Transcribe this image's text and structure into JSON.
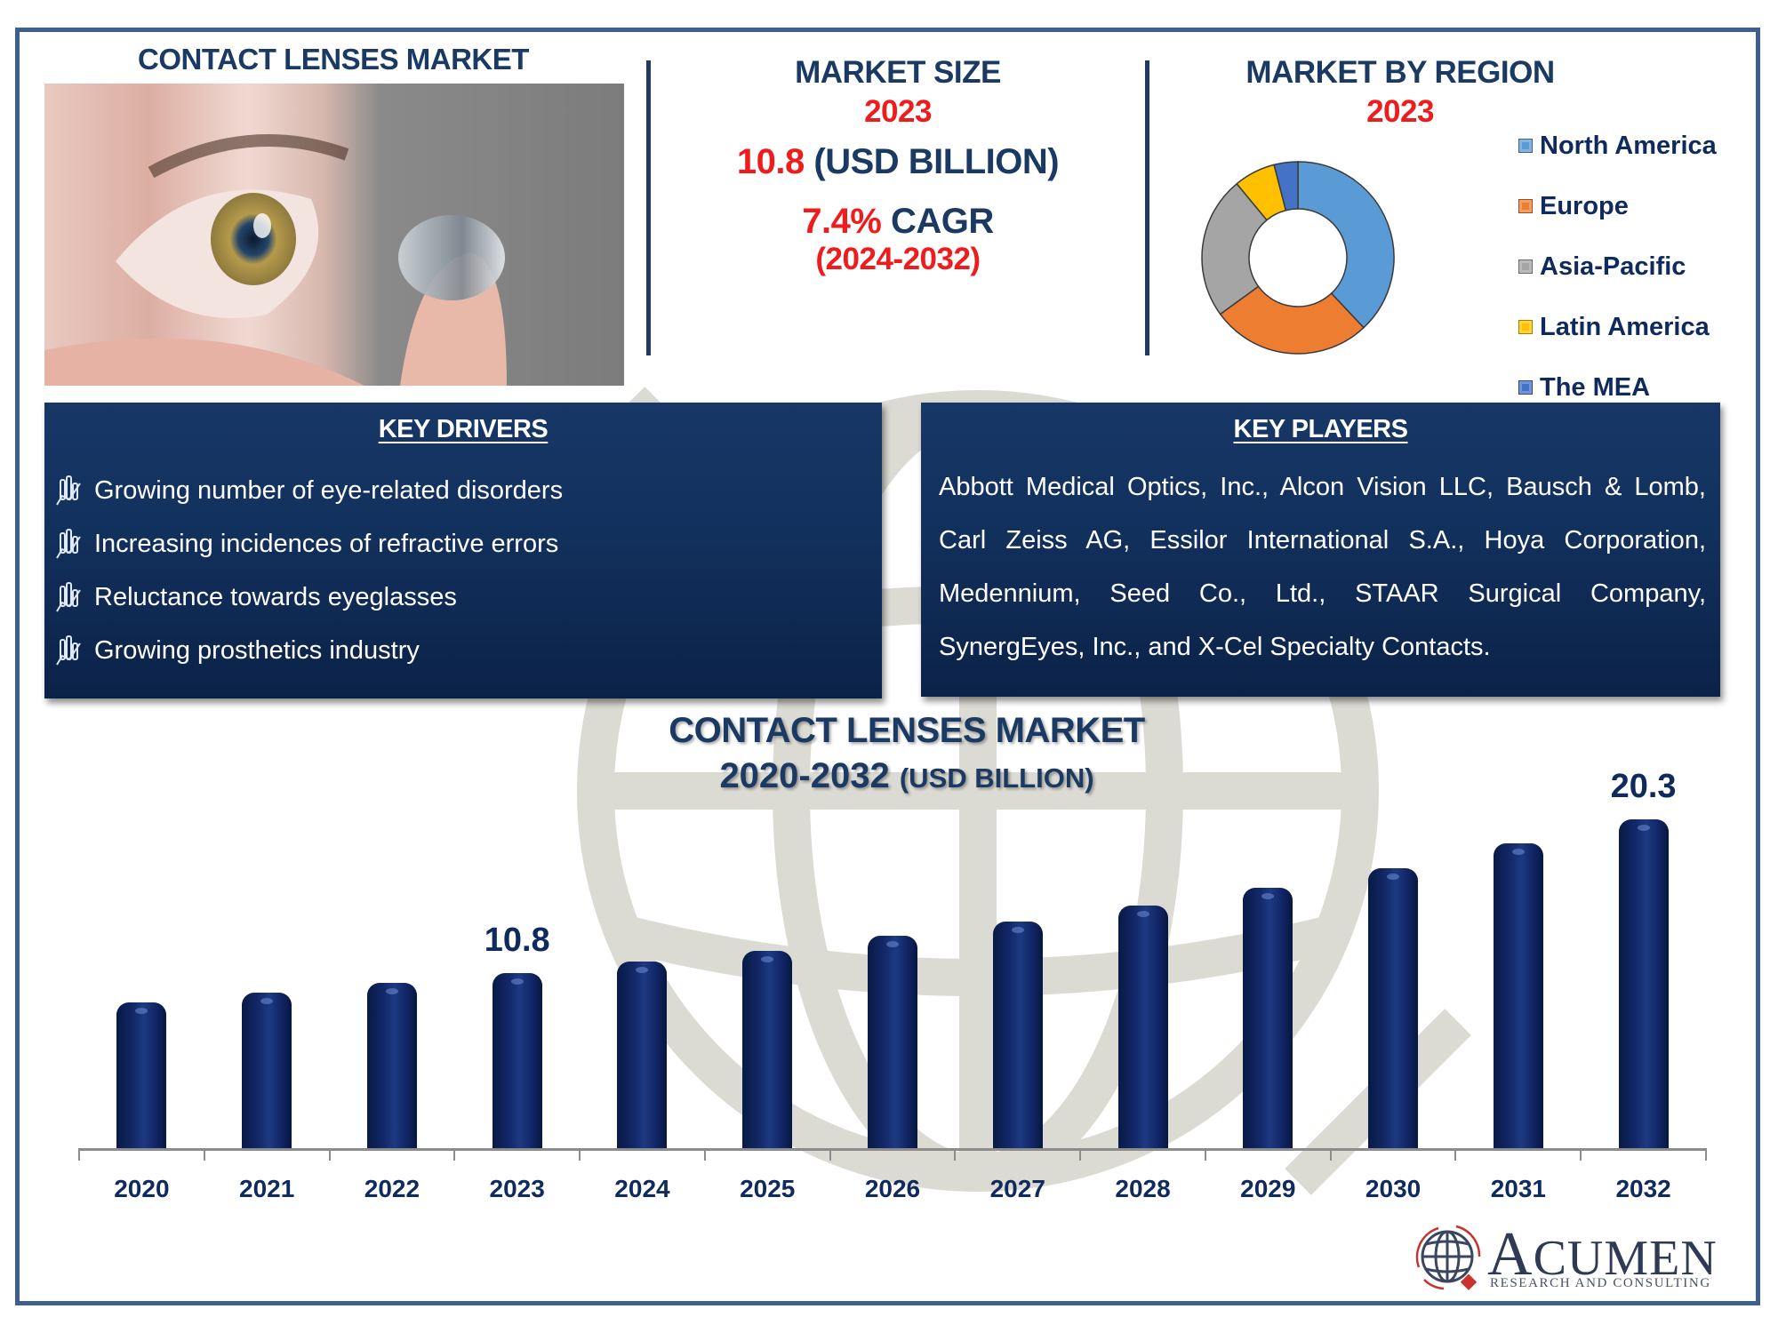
{
  "header": {
    "title": "CONTACT LENSES MARKET"
  },
  "market_size": {
    "heading": "MARKET SIZE",
    "year": "2023",
    "value": "10.8",
    "unit": "(USD BILLION)",
    "cagr_value": "7.4%",
    "cagr_label": "CAGR",
    "cagr_period": "(2024-2032)"
  },
  "region": {
    "heading": "MARKET BY REGION",
    "year": "2023",
    "legend": [
      {
        "label": "North America",
        "color": "#5b9bd5"
      },
      {
        "label": "Europe",
        "color": "#ed7d31"
      },
      {
        "label": "Asia-Pacific",
        "color": "#a5a5a5"
      },
      {
        "label": "Latin America",
        "color": "#ffc000"
      },
      {
        "label": "The MEA",
        "color": "#4472c4"
      }
    ]
  },
  "key_drivers": {
    "heading": "KEY DRIVERS",
    "icon": "bar-chart-trend-icon",
    "items": [
      "Growing number of eye-related disorders",
      "Increasing incidences of refractive errors",
      "Reluctance towards eyeglasses",
      "Growing prosthetics industry"
    ]
  },
  "key_players": {
    "heading": "KEY PLAYERS",
    "text": "Abbott Medical Optics, Inc., Alcon Vision LLC, Bausch & Lomb, Carl Zeiss AG, Essilor International S.A., Hoya Corporation, Medennium, Seed Co., Ltd., STAAR Surgical Company, SynergEyes, Inc., and X-Cel Specialty Contacts."
  },
  "bar_chart": {
    "title_line1": "CONTACT LENSES MARKET",
    "title_line2": "2020-2032",
    "title_unit": "(USD BILLION)"
  },
  "logo": {
    "name_cap": "A",
    "name_rest": "CUMEN",
    "tagline": "RESEARCH AND CONSULTING"
  },
  "colors": {
    "navy": "#1a3a64",
    "accent_red": "#ee1c1c",
    "bar": "#13296a",
    "frame": "#3d5f8f"
  },
  "chart_data": [
    {
      "type": "bar",
      "title": "CONTACT LENSES MARKET 2020-2032 (USD BILLION)",
      "categories": [
        "2020",
        "2021",
        "2022",
        "2023",
        "2024",
        "2025",
        "2026",
        "2027",
        "2028",
        "2029",
        "2030",
        "2031",
        "2032"
      ],
      "values": [
        9.0,
        9.6,
        10.2,
        10.8,
        11.5,
        12.2,
        13.1,
        14.0,
        15.0,
        16.1,
        17.3,
        18.8,
        20.3
      ],
      "labeled_values": {
        "2023": "10.8",
        "2032": "20.3"
      },
      "xlabel": "",
      "ylabel": "USD Billion",
      "ylim": [
        0,
        22
      ],
      "grid": false,
      "legend": "none"
    },
    {
      "type": "pie",
      "subtype": "donut",
      "title": "MARKET BY REGION 2023",
      "categories": [
        "North America",
        "Europe",
        "Asia-Pacific",
        "Latin America",
        "The MEA"
      ],
      "values": [
        38,
        27,
        24,
        7,
        4
      ],
      "colors": [
        "#5b9bd5",
        "#ed7d31",
        "#a5a5a5",
        "#ffc000",
        "#4472c4"
      ],
      "legend_position": "right"
    }
  ]
}
